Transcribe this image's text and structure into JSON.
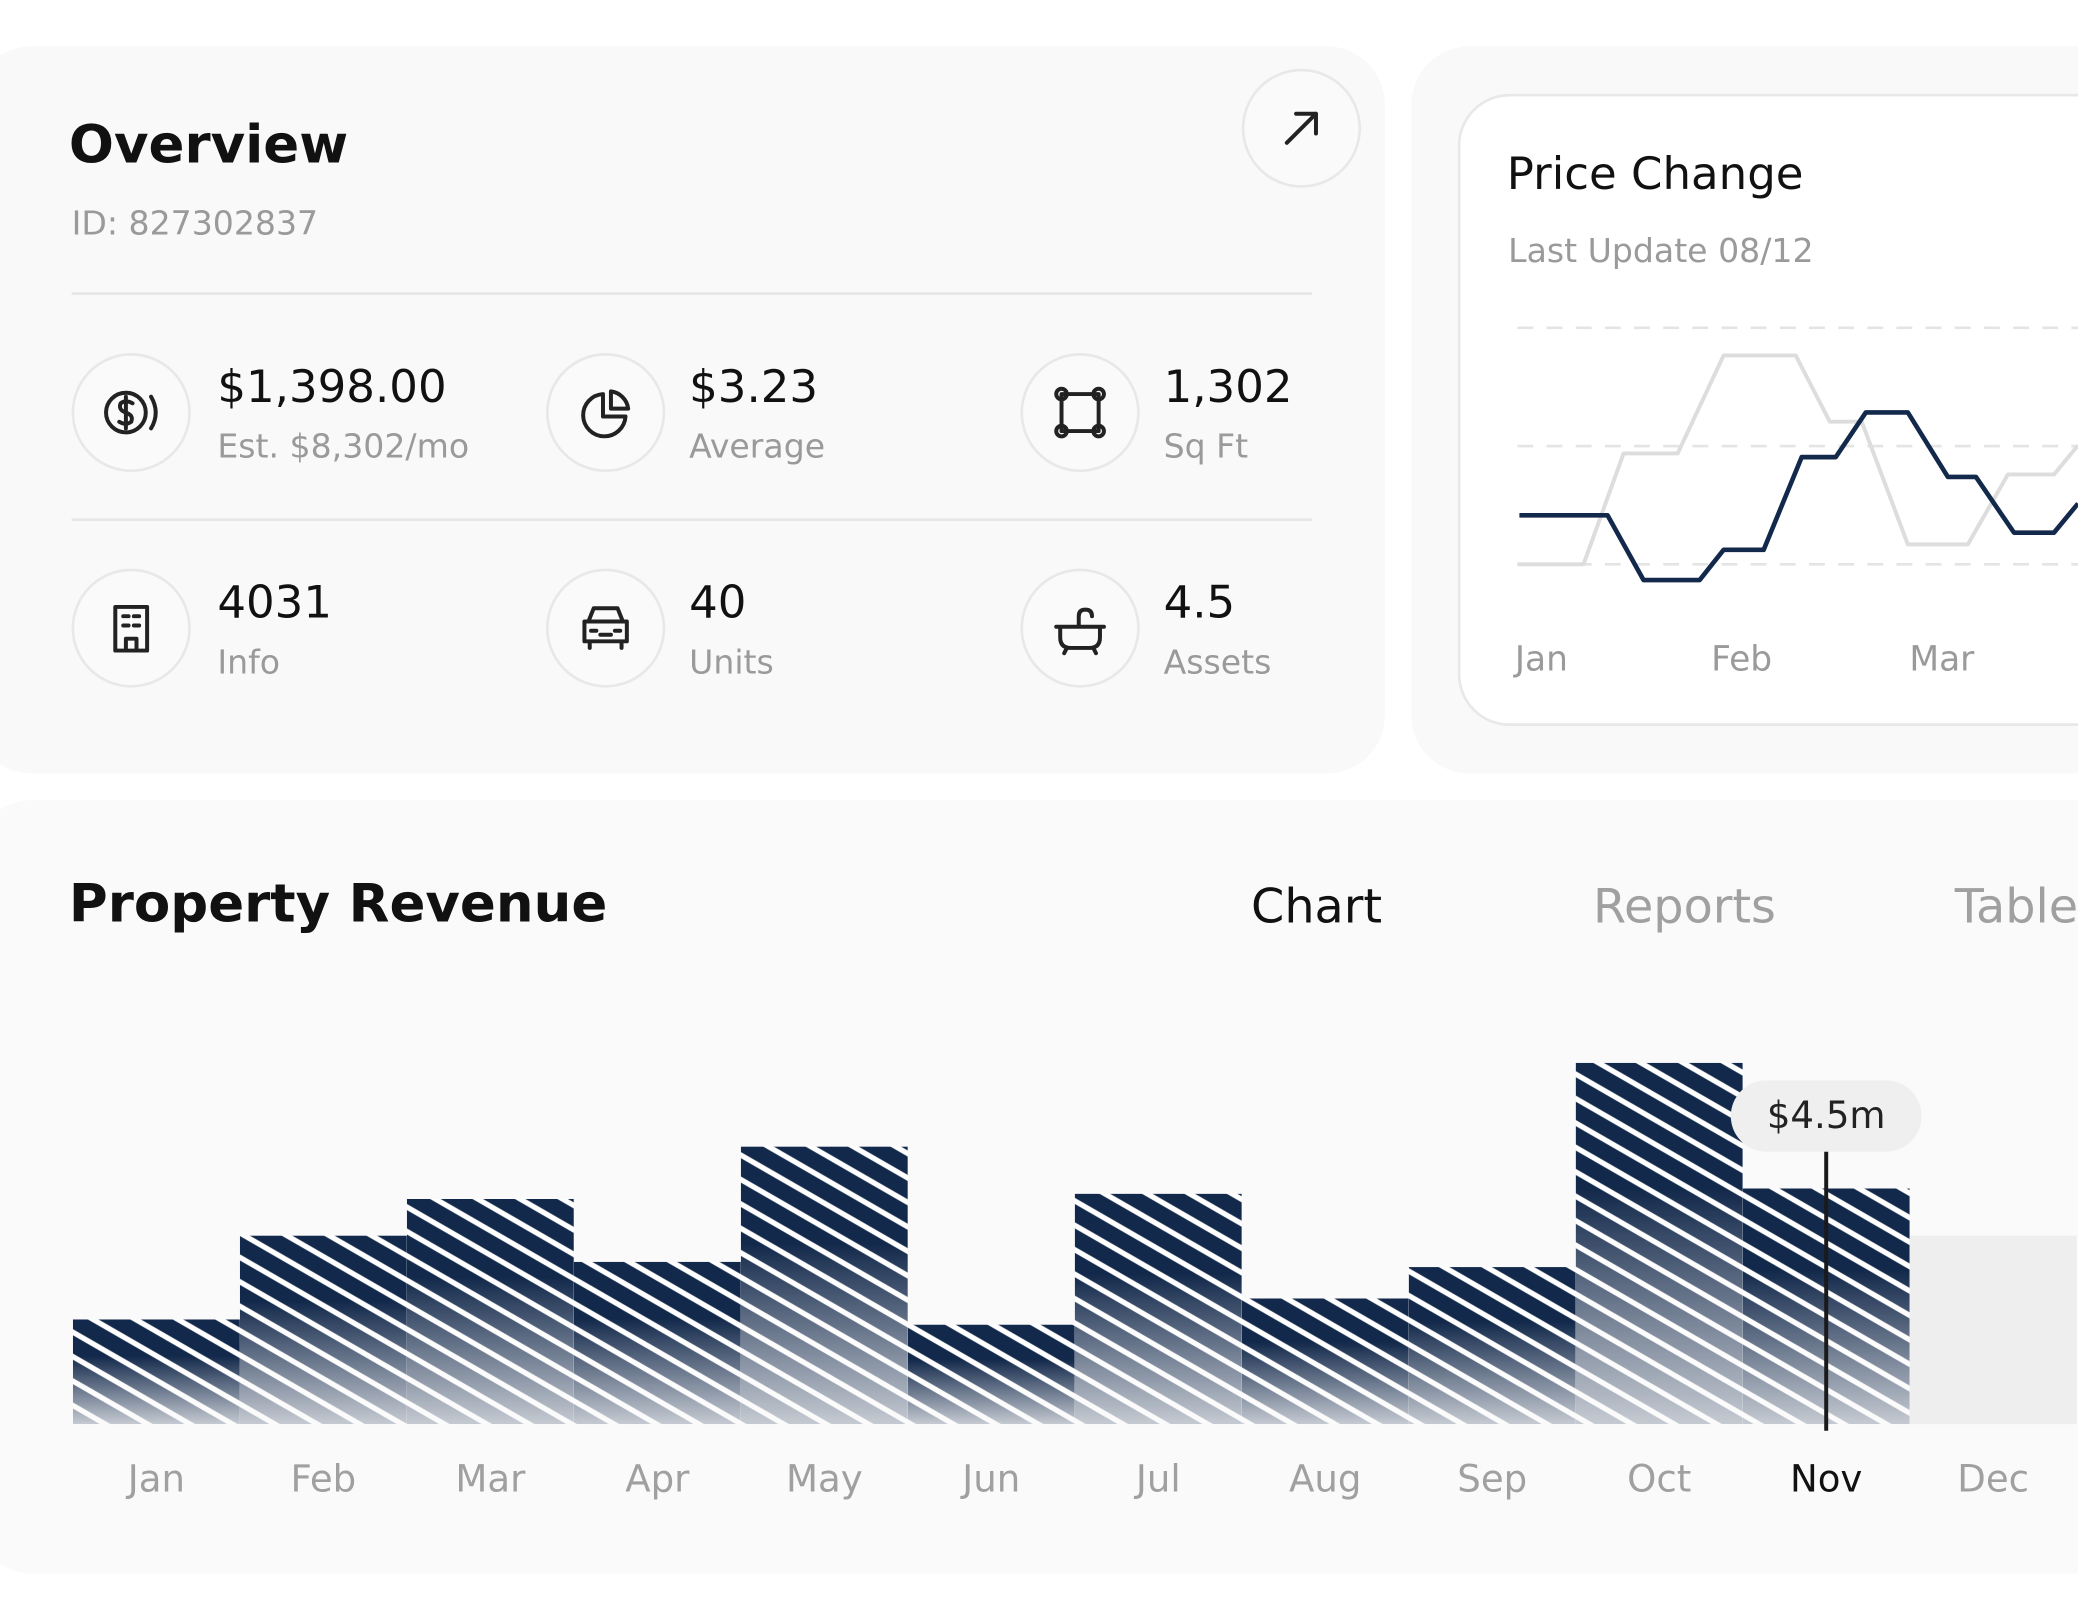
{
  "overview": {
    "title": "Overview",
    "id": "ID: 827302837",
    "stats": [
      {
        "value": "$1,398.00",
        "label": "Est. $8,302/mo"
      },
      {
        "value": "$3.23",
        "label": "Average"
      },
      {
        "value": "1,302",
        "label": "Sq Ft"
      },
      {
        "value": "4031",
        "label": "Info"
      },
      {
        "value": "40",
        "label": "Units"
      },
      {
        "value": "4.5",
        "label": "Assets"
      }
    ]
  },
  "price_change": {
    "title": "Price Change",
    "subtitle": "Last Update 08/12",
    "chart_data": {
      "type": "line",
      "xlim": [
        -0.12,
        2.68
      ],
      "xticks": [
        {
          "value": 0,
          "label": "Jan"
        },
        {
          "value": 1,
          "label": "Feb"
        },
        {
          "value": 2,
          "label": "Mar"
        }
      ],
      "ylim": [
        -13,
        110
      ],
      "yticks": [
        0,
        50,
        100
      ],
      "grid": true,
      "series": [
        {
          "color": "#dddddd",
          "x": [
            -0.12,
            0.21,
            0.41,
            0.68,
            0.91,
            1.27,
            1.44,
            1.6,
            1.83,
            2.13,
            2.33,
            2.56,
            2.68
          ],
          "values": [
            0,
            0,
            46.9,
            46.9,
            88.3,
            88.3,
            60.3,
            60.3,
            8.4,
            8.4,
            38.0,
            38.0,
            50.3
          ]
        },
        {
          "color": "#13294b",
          "x": [
            -0.11,
            0.33,
            0.51,
            0.79,
            0.91,
            1.11,
            1.3,
            1.47,
            1.62,
            1.83,
            2.03,
            2.17,
            2.36,
            2.56,
            2.68
          ],
          "values": [
            20.7,
            20.7,
            -6.7,
            -6.7,
            6.1,
            6.1,
            45.3,
            45.3,
            64.2,
            64.2,
            36.9,
            36.9,
            13.4,
            13.4,
            25.7
          ]
        }
      ]
    }
  },
  "revenue": {
    "title": "Property Revenue",
    "tabs": [
      "Chart",
      "Reports",
      "Table"
    ],
    "active_tab": 0,
    "chart_data": {
      "type": "bar",
      "categories": [
        "Jan",
        "Feb",
        "Mar",
        "Apr",
        "May",
        "Jun",
        "Jul",
        "Aug",
        "Sep",
        "Oct",
        "Nov",
        "Dec"
      ],
      "values": [
        2.0,
        3.6,
        4.3,
        3.1,
        5.3,
        1.9,
        4.4,
        2.4,
        3.0,
        6.9,
        4.5,
        3.6
      ],
      "value_labels": {
        "10": "$4.5m"
      },
      "highlight_index": 10,
      "colors": [
        "#13294b",
        "#13294b",
        "#13294b",
        "#13294b",
        "#13294b",
        "#13294b",
        "#13294b",
        "#13294b",
        "#13294b",
        "#13294b",
        "#13294b",
        "#efeeee"
      ],
      "ylim": [
        0,
        7.5
      ]
    }
  }
}
